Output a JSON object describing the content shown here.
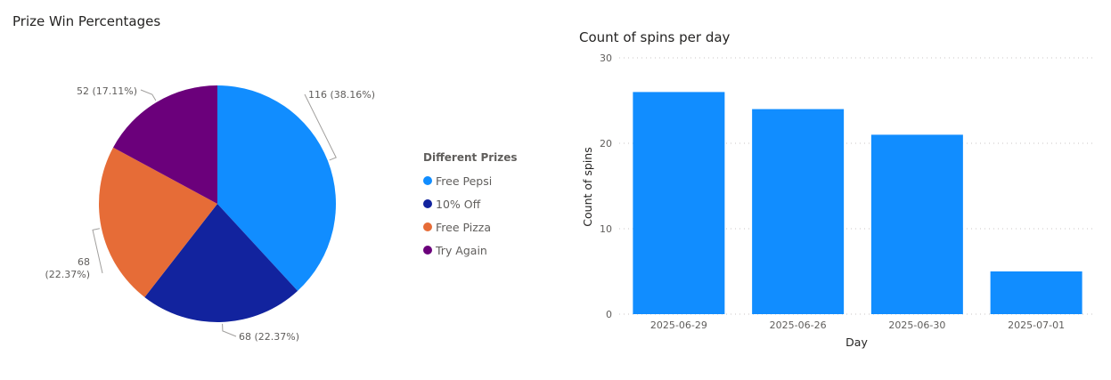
{
  "chart_data": [
    {
      "type": "pie",
      "title": "Prize Win Percentages",
      "legend_title": "Different Prizes",
      "legend_position": "right",
      "slices": [
        {
          "label": "Free Pepsi",
          "value": 116,
          "data_label": "116 (38.16%)",
          "color": "#118DFF"
        },
        {
          "label": "10% Off",
          "value": 68,
          "data_label": "68 (22.37%)",
          "color": "#12239E"
        },
        {
          "label": "Free Pizza",
          "value": 68,
          "data_label_lines": [
            "68",
            "(22.37%)"
          ],
          "color": "#E66C37"
        },
        {
          "label": "Try Again",
          "value": 52,
          "data_label": "52 (17.11%)",
          "color": "#6B007B"
        }
      ]
    },
    {
      "type": "bar",
      "title": "Count of spins per day",
      "xlabel": "Day",
      "ylabel": "Count of spins",
      "categories": [
        "2025-06-29",
        "2025-06-26",
        "2025-06-30",
        "2025-07-01"
      ],
      "values": [
        26,
        24,
        21,
        5
      ],
      "ylim": [
        0,
        30
      ],
      "yticks": [
        0,
        10,
        20,
        30
      ],
      "grid": true,
      "color": "#118DFF"
    }
  ]
}
